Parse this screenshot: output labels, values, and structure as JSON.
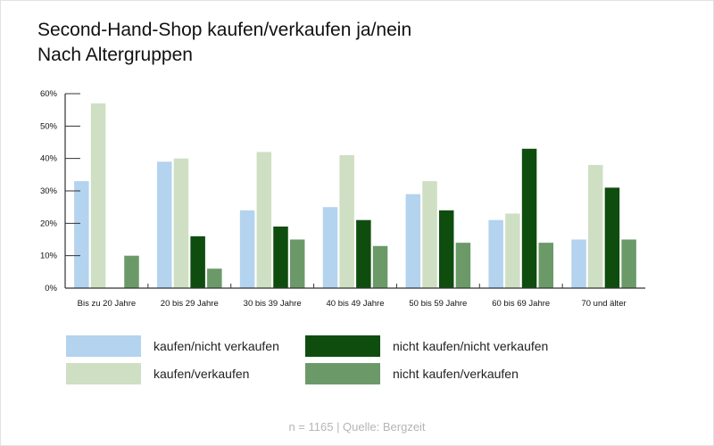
{
  "title_line1": "Second-Hand-Shop kaufen/verkaufen ja/nein",
  "title_line2": "Nach Altergruppen",
  "source": "n = 1165 | Quelle: Bergzeit",
  "chart_data": {
    "type": "bar",
    "title": "Second-Hand-Shop kaufen/verkaufen ja/nein",
    "subtitle": "Nach Altergruppen",
    "categories": [
      "Bis zu 20 Jahre",
      "20 bis 29 Jahre",
      "30 bis 39 Jahre",
      "40 bis 49 Jahre",
      "50 bis 59 Jahre",
      "60 bis 69 Jahre",
      "70 und älter"
    ],
    "series": [
      {
        "name": "kaufen/nicht verkaufen",
        "color": "#b3d3ef",
        "values": [
          33,
          39,
          24,
          25,
          29,
          21,
          15
        ]
      },
      {
        "name": "kaufen/verkaufen",
        "color": "#cfdfc3",
        "values": [
          57,
          40,
          42,
          41,
          33,
          23,
          38
        ]
      },
      {
        "name": "nicht kaufen/nicht verkaufen",
        "color": "#0f4d0f",
        "values": [
          0,
          16,
          19,
          21,
          24,
          43,
          31
        ]
      },
      {
        "name": "nicht kaufen/verkaufen",
        "color": "#6b9a68",
        "values": [
          10,
          6,
          15,
          13,
          14,
          14,
          15
        ]
      }
    ],
    "yticks": [
      "0%",
      "10%",
      "20%",
      "30%",
      "40%",
      "50%",
      "60%"
    ],
    "ylim": [
      0,
      60
    ],
    "yunit": "%",
    "grid": false,
    "legend_placement": "bottom"
  }
}
